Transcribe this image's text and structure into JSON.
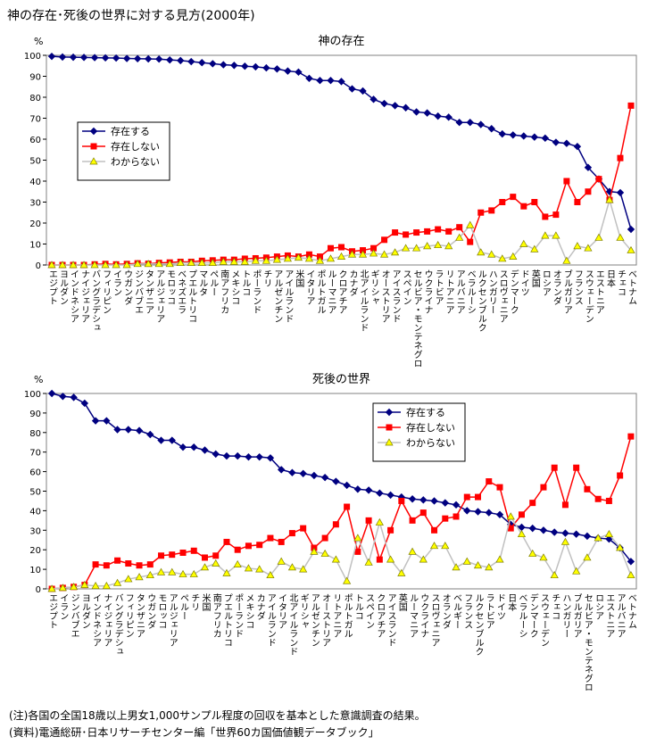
{
  "title": "神の存在･死後の世界に対する見方(2000年)",
  "notes": [
    "(注)各国の全国18歳以上男女1,000サンプル程度の回収を基本とした意識調査の結果。",
    "(資料)電通総研･日本リサーチセンター編「世界60カ国価値観データブック」"
  ],
  "chart_data": [
    {
      "type": "line",
      "title": "神の存在",
      "ylabel": "%",
      "ylim": [
        0,
        100
      ],
      "yticks": [
        0,
        10,
        20,
        30,
        40,
        50,
        60,
        70,
        80,
        90,
        100
      ],
      "grid": false,
      "legend": "upper left",
      "categories": [
        "エジプト",
        "ヨルダン",
        "インドネシア",
        "ナイジェリア",
        "バングラデシュ",
        "フィリピン",
        "イラン",
        "ウガンダ",
        "ジンバブエ",
        "タンザニア",
        "アルジェリア",
        "モロッコ",
        "ベネズエラ",
        "プエルトリコ",
        "マルタ",
        "ペルー",
        "南アフリカ",
        "メキシコ",
        "トルコ",
        "ポーランド",
        "チリ",
        "アルゼンチン",
        "アイルランド",
        "米国",
        "イタリア",
        "ポルトガル",
        "ルーマニア",
        "クロアチア",
        "カナダ",
        "北アイルランド",
        "ギリシャ",
        "オーストリア",
        "アイスランド",
        "スペイン",
        "セルビア・モンテネグロ",
        "ウクライナ",
        "ラトビア",
        "リトアニア",
        "アルバニア",
        "ベラルーシ",
        "ルクセンブルク",
        "ハンガリー",
        "スロヴェニア",
        "デンマーク",
        "ドイツ",
        "英国",
        "ロシア",
        "オランダ",
        "ブルガリア",
        "フランス",
        "スウェーデン",
        "エストニア",
        "日本",
        "チェコ",
        "ベトナム"
      ],
      "series": [
        {
          "name": "存在する",
          "color": "#000080",
          "marker": "diamond",
          "marker_fill": "#000080",
          "values": [
            99.5,
            99.2,
            99.1,
            99,
            98.9,
            98.8,
            98.7,
            98.5,
            98.4,
            98.3,
            98.2,
            97.8,
            97.5,
            97,
            96.5,
            96,
            95.5,
            95.2,
            94.8,
            94.5,
            94,
            93.5,
            92.5,
            92,
            89,
            88,
            88,
            87.5,
            84,
            83,
            79,
            77,
            76,
            75,
            73,
            72.5,
            71,
            70.5,
            68,
            68,
            67,
            65,
            62.5,
            62,
            61.5,
            61,
            60.5,
            58.5,
            58,
            56.5,
            46.5,
            41,
            35,
            34.5,
            17
          ]
        },
        {
          "name": "存在しない",
          "color": "#ff0000",
          "marker": "square",
          "marker_fill": "#ff0000",
          "values": [
            0,
            0,
            0,
            0,
            0.3,
            0.5,
            0.3,
            0.5,
            0.8,
            0.6,
            1,
            1.2,
            1.5,
            1.5,
            2,
            2.2,
            2.5,
            2.5,
            3,
            3.2,
            3.5,
            4,
            4.5,
            4,
            5,
            4,
            8,
            8.5,
            6.5,
            7,
            8,
            12,
            15.5,
            14.5,
            15.5,
            16,
            17,
            16,
            18,
            11,
            25,
            26,
            30,
            32.5,
            28,
            30,
            23,
            24,
            40,
            30,
            35,
            41,
            31,
            51,
            76
          ]
        },
        {
          "name": "わからない",
          "color": "#c0c0c0",
          "marker": "triangle",
          "marker_fill": "#ffff00",
          "values": [
            0,
            0,
            0,
            0,
            0,
            0,
            0,
            0,
            0.5,
            0.5,
            0.5,
            0.5,
            1,
            1,
            1,
            1,
            1.5,
            1.5,
            1.5,
            2,
            2,
            2.5,
            3,
            3.5,
            3,
            2,
            3,
            4,
            5,
            5,
            5.5,
            5,
            6,
            8,
            8,
            9,
            9.5,
            9,
            13,
            19,
            6,
            5,
            3,
            4,
            10,
            7.5,
            14,
            14,
            2,
            9,
            8,
            13,
            31,
            13,
            7
          ]
        }
      ]
    },
    {
      "type": "line",
      "title": "死後の世界",
      "ylabel": "%",
      "ylim": [
        0,
        100
      ],
      "yticks": [
        0,
        10,
        20,
        30,
        40,
        50,
        60,
        70,
        80,
        90,
        100
      ],
      "grid": false,
      "legend": "upper center",
      "categories": [
        "エジプト",
        "イラン",
        "ジンバブエ",
        "ヨルダン",
        "インドネシア",
        "ナイジェリア",
        "バングラデシュ",
        "フィリピン",
        "タンザニア",
        "ウガンダ",
        "モロッコ",
        "アルジェリア",
        "ペルー",
        "チリ",
        "米国",
        "南アフリカ",
        "プエルトリコ",
        "ポーランド",
        "メキシコ",
        "カナダ",
        "アイルランド",
        "イタリア",
        "北アイルランド",
        "ギリシャ",
        "アルゼンチン",
        "オーストリア",
        "リトアニア",
        "ポルトガル",
        "トルコ",
        "スペイン",
        "クロアチア",
        "アイスランド",
        "英国",
        "ルーマニア",
        "ウクライナ",
        "スロヴェニア",
        "オランダ",
        "ベルギー",
        "フランス",
        "ルクセンブルク",
        "ラトビア",
        "ドイツ",
        "日本",
        "ベラルーシ",
        "デンマーク",
        "スウェーデン",
        "チェコ",
        "ハンガリー",
        "ブルガリア",
        "セルビア・モンテネグロ",
        "ロシア",
        "エストニア",
        "アルバニア",
        "ベトナム"
      ],
      "series": [
        {
          "name": "存在する",
          "color": "#000080",
          "marker": "diamond",
          "marker_fill": "#000080",
          "values": [
            100,
            98.5,
            98,
            95,
            86,
            86,
            81.5,
            81.5,
            81,
            79,
            76,
            76,
            72.5,
            72.5,
            71,
            69,
            68,
            68,
            67.5,
            67.5,
            67,
            61,
            59.5,
            59,
            58,
            57,
            55,
            53,
            51,
            50.5,
            49,
            48,
            47,
            46,
            45.5,
            45,
            44,
            43,
            40,
            39.5,
            39,
            38,
            33,
            31.5,
            31,
            30,
            29,
            28.5,
            28,
            27,
            26,
            25.5,
            21,
            14
          ]
        },
        {
          "name": "存在しない",
          "color": "#ff0000",
          "marker": "square",
          "marker_fill": "#ff0000",
          "values": [
            0,
            0.5,
            1,
            2,
            12.5,
            12,
            14.5,
            13,
            12,
            12.5,
            17,
            17.5,
            18.5,
            19.5,
            16,
            17,
            24,
            20,
            22,
            22.5,
            26,
            24,
            28.5,
            31,
            21,
            26,
            33,
            42,
            19,
            35,
            15,
            30,
            45,
            35,
            39,
            30,
            36,
            37,
            47,
            47,
            55,
            52,
            31,
            38,
            44,
            52,
            62,
            43,
            62,
            51,
            46,
            45,
            58,
            78
          ]
        },
        {
          "name": "わからない",
          "color": "#c0c0c0",
          "marker": "triangle",
          "marker_fill": "#ffff00",
          "values": [
            0,
            0.5,
            1,
            2,
            1.5,
            1.5,
            3,
            5,
            6,
            7,
            8.5,
            8.5,
            7.5,
            7.5,
            11,
            13,
            8,
            12.5,
            10.5,
            10,
            7,
            14,
            11,
            10,
            19,
            18,
            15,
            4,
            26,
            13.5,
            34,
            15,
            8,
            19,
            15,
            22,
            22,
            11,
            14,
            12,
            11,
            15,
            37,
            28,
            18,
            16,
            7,
            24,
            9,
            16,
            26,
            28,
            21,
            7
          ]
        }
      ]
    }
  ]
}
